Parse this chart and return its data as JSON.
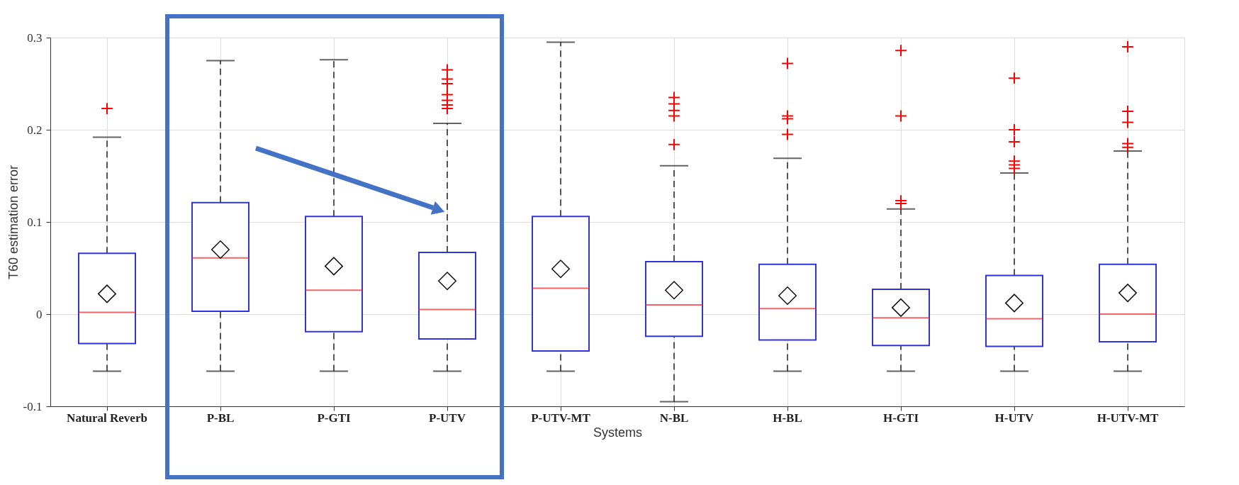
{
  "chart_data": {
    "type": "box",
    "xlabel": "Systems",
    "ylabel": "T60 estimation error",
    "categories": [
      "Natural Reverb",
      "P-BL",
      "P-GTI",
      "P-UTV",
      "P-UTV-MT",
      "N-BL",
      "H-BL",
      "H-GTI",
      "H-UTV",
      "H-UTV-MT"
    ],
    "series": [
      {
        "color": "#3333dd",
        "boxes": [
          {
            "low": -0.062,
            "q1": -0.032,
            "median": 0.002,
            "q3": 0.066,
            "high": 0.192,
            "mean": 0.022,
            "outliers": [
              0.223
            ]
          },
          {
            "low": -0.062,
            "q1": 0.003,
            "median": 0.061,
            "q3": 0.121,
            "high": 0.275,
            "mean": 0.07
          },
          {
            "low": -0.062,
            "q1": -0.019,
            "median": 0.026,
            "q3": 0.106,
            "high": 0.276,
            "mean": 0.052
          },
          {
            "low": -0.062,
            "q1": -0.027,
            "median": 0.005,
            "q3": 0.067,
            "high": 0.207,
            "mean": 0.036,
            "outliers": [
              0.265,
              0.255,
              0.25,
              0.238,
              0.232,
              0.227,
              0.223
            ]
          },
          {
            "low": -0.062,
            "q1": -0.04,
            "median": 0.028,
            "q3": 0.106,
            "high": 0.295,
            "mean": 0.049
          },
          {
            "low": -0.095,
            "q1": -0.024,
            "median": 0.01,
            "q3": 0.057,
            "high": 0.161,
            "mean": 0.026,
            "outliers": [
              0.235,
              0.228,
              0.221,
              0.215,
              0.184
            ]
          },
          {
            "low": -0.062,
            "q1": -0.028,
            "median": 0.006,
            "q3": 0.054,
            "high": 0.169,
            "mean": 0.02,
            "outliers": [
              0.272,
              0.215,
              0.212,
              0.195
            ]
          },
          {
            "low": -0.062,
            "q1": -0.034,
            "median": -0.004,
            "q3": 0.027,
            "high": 0.114,
            "mean": 0.007,
            "outliers": [
              0.286,
              0.215,
              0.123,
              0.12
            ]
          },
          {
            "low": -0.062,
            "q1": -0.035,
            "median": -0.005,
            "q3": 0.042,
            "high": 0.153,
            "mean": 0.012,
            "outliers": [
              0.256,
              0.2,
              0.187,
              0.166,
              0.162,
              0.158
            ]
          },
          {
            "low": -0.062,
            "q1": -0.03,
            "median": 0.0,
            "q3": 0.054,
            "high": 0.177,
            "mean": 0.023,
            "outliers": [
              0.29,
              0.22,
              0.208,
              0.185,
              0.181
            ]
          }
        ]
      }
    ],
    "ylim": [
      -0.1,
      0.3
    ],
    "yticks": [
      -0.1,
      0,
      0.1,
      0.2,
      0.3
    ],
    "grid": true
  }
}
